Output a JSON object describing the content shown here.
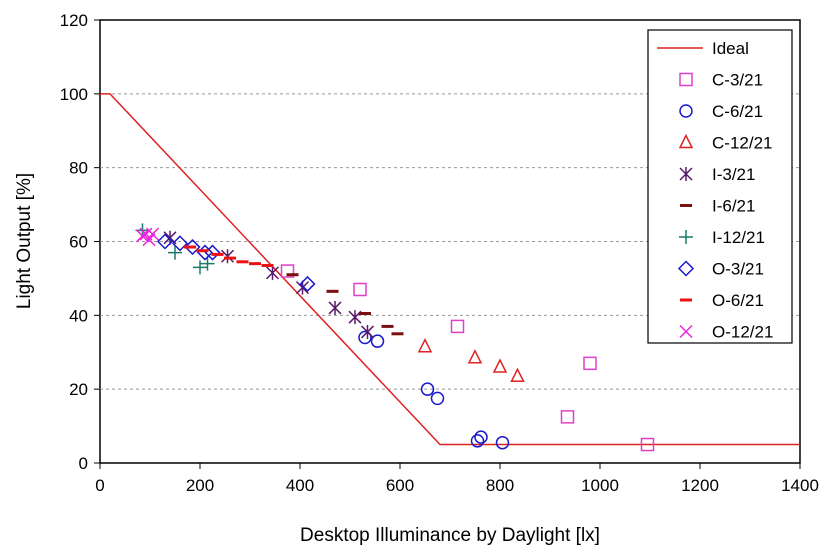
{
  "chart_data": {
    "type": "scatter",
    "xlabel": "Desktop Illuminance by Daylight [lx]",
    "ylabel": "Light Output [%]",
    "xlim": [
      0,
      1400
    ],
    "ylim": [
      0,
      120
    ],
    "xticks": [
      0,
      200,
      400,
      600,
      800,
      1000,
      1200,
      1400
    ],
    "yticks": [
      0,
      20,
      40,
      60,
      80,
      100,
      120
    ],
    "grid": "horizontal dashed",
    "legend_position": "right",
    "series": [
      {
        "name": "Ideal",
        "kind": "line",
        "color": "#dd2222",
        "points": [
          [
            0,
            100
          ],
          [
            20,
            100
          ],
          [
            680,
            5
          ],
          [
            1400,
            5
          ]
        ]
      },
      {
        "name": "C-3/21",
        "marker": "square",
        "color": "#e040c8",
        "points": [
          [
            375,
            52
          ],
          [
            520,
            47
          ],
          [
            715,
            37
          ],
          [
            935,
            12.5
          ],
          [
            980,
            27
          ],
          [
            1095,
            5
          ]
        ]
      },
      {
        "name": "C-6/21",
        "marker": "circle",
        "color": "#1a1acc",
        "points": [
          [
            530,
            34
          ],
          [
            555,
            33
          ],
          [
            655,
            20
          ],
          [
            675,
            17.5
          ],
          [
            755,
            6
          ],
          [
            762,
            7
          ],
          [
            805,
            5.5
          ]
        ]
      },
      {
        "name": "C-12/21",
        "marker": "triangle",
        "color": "#dd2222",
        "points": [
          [
            650,
            31.5
          ],
          [
            750,
            28.5
          ],
          [
            800,
            26
          ],
          [
            835,
            23.5
          ]
        ]
      },
      {
        "name": "I-3/21",
        "marker": "asterisk",
        "color": "#5a1a6a",
        "points": [
          [
            140,
            61
          ],
          [
            255,
            56
          ],
          [
            345,
            51.5
          ],
          [
            405,
            47.5
          ],
          [
            470,
            42
          ],
          [
            510,
            39.5
          ],
          [
            535,
            35.5
          ]
        ]
      },
      {
        "name": "I-6/21",
        "marker": "dash",
        "color": "#7a1010",
        "points": [
          [
            385,
            51
          ],
          [
            465,
            46.5
          ],
          [
            530,
            40.5
          ],
          [
            575,
            37
          ],
          [
            595,
            35
          ]
        ]
      },
      {
        "name": "I-12/21",
        "marker": "plus",
        "color": "#1a7a6a",
        "points": [
          [
            85,
            63
          ],
          [
            150,
            57
          ],
          [
            200,
            53
          ],
          [
            215,
            54
          ]
        ]
      },
      {
        "name": "O-3/21",
        "marker": "diamond",
        "color": "#1a1acc",
        "points": [
          [
            130,
            60
          ],
          [
            160,
            59.5
          ],
          [
            185,
            58.5
          ],
          [
            210,
            57
          ],
          [
            225,
            57
          ],
          [
            415,
            48.5
          ]
        ]
      },
      {
        "name": "O-6/21",
        "marker": "dash",
        "color": "#ee1111",
        "points": [
          [
            180,
            58.5
          ],
          [
            205,
            57.5
          ],
          [
            235,
            56.5
          ],
          [
            260,
            55.5
          ],
          [
            285,
            54.5
          ],
          [
            310,
            54
          ],
          [
            335,
            53.5
          ]
        ]
      },
      {
        "name": "O-12/21",
        "marker": "x",
        "color": "#ee22dd",
        "points": [
          [
            85,
            61.5
          ],
          [
            92,
            62
          ],
          [
            98,
            60.5
          ],
          [
            105,
            62
          ]
        ]
      }
    ]
  }
}
